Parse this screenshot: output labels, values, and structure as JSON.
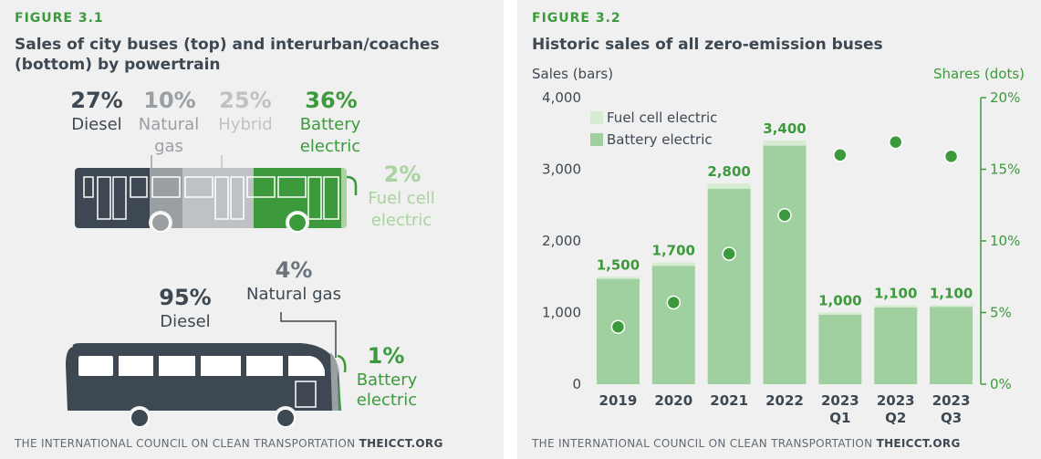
{
  "left": {
    "figure_label": "FIGURE 3.1",
    "title": "Sales of city buses (top) and interurban/coaches (bottom) by powertrain",
    "city_buses": [
      {
        "pct": "27%",
        "label1": "Diesel",
        "label2": "",
        "share": 27,
        "color": "#3d4852"
      },
      {
        "pct": "10%",
        "label1": "Natural",
        "label2": "gas",
        "share": 10,
        "color": "#9a9fa4"
      },
      {
        "pct": "25%",
        "label1": "Hybrid",
        "label2": "",
        "share": 25,
        "color": "#bfc2c5"
      },
      {
        "pct": "36%",
        "label1": "Battery",
        "label2": "electric",
        "share": 36,
        "color": "#3c9a3c"
      },
      {
        "pct": "2%",
        "label1": "Fuel cell",
        "label2": "electric",
        "share": 2,
        "color": "#a9d4a0"
      }
    ],
    "coaches": [
      {
        "pct": "95%",
        "label1": "Diesel",
        "label2": "",
        "share": 95,
        "color": "#3d4852"
      },
      {
        "pct": "4%",
        "label1": "Natural gas",
        "label2": "",
        "share": 4,
        "color": "#9a9fa4"
      },
      {
        "pct": "1%",
        "label1": "Battery",
        "label2": "electric",
        "share": 1,
        "color": "#3c9a3c"
      }
    ],
    "footer_org": "THE INTERNATIONAL COUNCIL ON CLEAN TRANSPORTATION",
    "footer_site": "THEICCT.ORG"
  },
  "right": {
    "figure_label": "FIGURE 3.2",
    "title": "Historic sales of all zero-emission buses",
    "footer_org": "THE INTERNATIONAL COUNCIL ON CLEAN TRANSPORTATION",
    "footer_site": "THEICCT.ORG"
  },
  "chart_data": {
    "type": "bar",
    "ylabel": "Sales (bars)",
    "y2label": "Shares (dots)",
    "ylim": [
      0,
      4000
    ],
    "y2lim": [
      0,
      20
    ],
    "yticks": [
      "0",
      "1,000",
      "2,000",
      "3,000",
      "4,000"
    ],
    "y2ticks": [
      "0%",
      "5%",
      "10%",
      "15%",
      "20%"
    ],
    "categories": [
      [
        "2019"
      ],
      [
        "2020"
      ],
      [
        "2021"
      ],
      [
        "2022"
      ],
      [
        "2023",
        "Q1"
      ],
      [
        "2023",
        "Q2"
      ],
      [
        "2023",
        "Q3"
      ]
    ],
    "totals": [
      "1,500",
      "1,700",
      "2,800",
      "3,400",
      "1,000",
      "1,100",
      "1,100"
    ],
    "series": [
      {
        "name": "Battery electric",
        "values": [
          1470,
          1650,
          2730,
          3330,
          970,
          1070,
          1080
        ],
        "color": "#a0cfa0"
      },
      {
        "name": "Fuel cell electric",
        "values": [
          30,
          50,
          70,
          70,
          30,
          30,
          20
        ],
        "color": "#d6ecd2"
      }
    ],
    "shares": [
      4.0,
      5.7,
      9.1,
      11.8,
      16.0,
      16.9,
      15.9
    ],
    "dot_color": "#3c9a3c",
    "legend": "top-left",
    "grid": false
  }
}
